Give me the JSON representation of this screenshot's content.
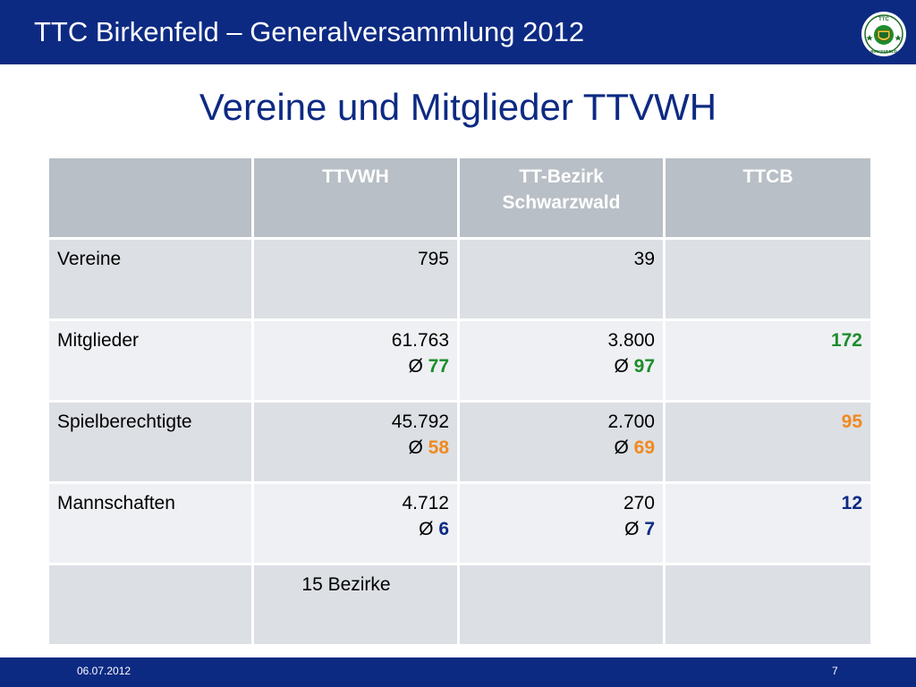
{
  "header": {
    "title": "TTC Birkenfeld – Generalversammlung 2012",
    "logo_text_top": "TTC",
    "logo_text_bottom": "BIRKENFELD",
    "brand_color": "#0d2a83"
  },
  "slide": {
    "title": "Vereine und Mitglieder TTVWH"
  },
  "table": {
    "headers": [
      "",
      "TTVWH",
      "TT-Bezirk Schwarzwald",
      "TTCB"
    ],
    "rows": [
      {
        "label": "Vereine",
        "ttvwh": {
          "value": "795",
          "avg_prefix": "",
          "avg": ""
        },
        "bezirk": {
          "value": "39",
          "avg_prefix": "",
          "avg": ""
        },
        "ttcb": {
          "value": ""
        }
      },
      {
        "label": "Mitglieder",
        "ttvwh": {
          "value": "61.763",
          "avg_prefix": "Ø ",
          "avg": "77"
        },
        "bezirk": {
          "value": "3.800",
          "avg_prefix": "Ø ",
          "avg": "97"
        },
        "ttcb": {
          "value": "172"
        }
      },
      {
        "label": "Spielberechtigte",
        "ttvwh": {
          "value": "45.792",
          "avg_prefix": "Ø ",
          "avg": "58"
        },
        "bezirk": {
          "value": "2.700",
          "avg_prefix": "Ø ",
          "avg": "69"
        },
        "ttcb": {
          "value": "95"
        }
      },
      {
        "label": "Mannschaften",
        "ttvwh": {
          "value": "4.712",
          "avg_prefix": "Ø ",
          "avg": "6"
        },
        "bezirk": {
          "value": "270",
          "avg_prefix": "Ø ",
          "avg": "7"
        },
        "ttcb": {
          "value": "12"
        }
      },
      {
        "label": "",
        "ttvwh": {
          "value": "15 Bezirke",
          "avg_prefix": "",
          "avg": ""
        },
        "bezirk": {
          "value": "",
          "avg_prefix": "",
          "avg": ""
        },
        "ttcb": {
          "value": ""
        }
      }
    ],
    "colors": {
      "header_bg": "#b8bfc6",
      "row_dark": "#dcdfe4",
      "row_light": "#eef0f3",
      "green": "#1d8c2b",
      "orange": "#ef8a20",
      "navy": "#0d2a83"
    }
  },
  "footer": {
    "date": "06.07.2012",
    "page": "7"
  }
}
